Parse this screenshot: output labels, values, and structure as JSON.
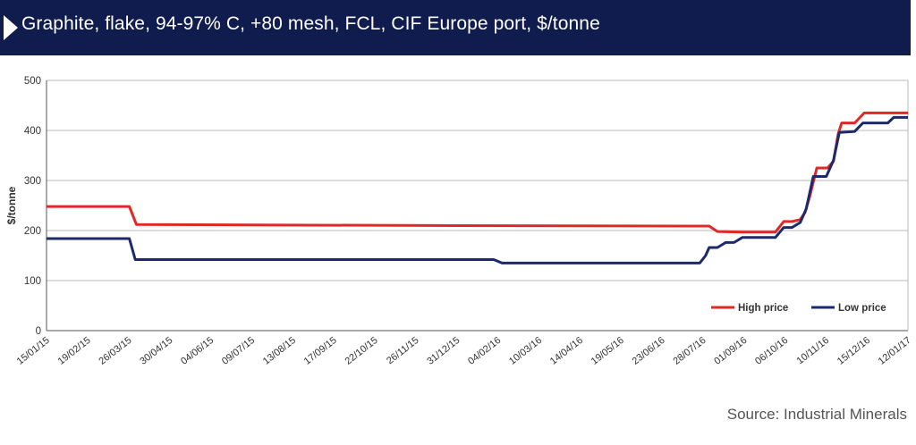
{
  "title": "Graphite, flake, 94-97% C, +80 mesh, FCL, CIF Europe port, $/tonne",
  "source": "Source: Industrial Minerals",
  "colors": {
    "header_bg": "#0f1c4d",
    "high": "#e02827",
    "low": "#1c2a6b",
    "grid": "#b9b9b9"
  },
  "chart_data": {
    "type": "line",
    "title": "Graphite, flake, 94-97% C, +80 mesh, FCL, CIF Europe port, $/tonne",
    "ylabel": "$/tonne",
    "xlabel": "",
    "ylim": [
      0,
      500
    ],
    "yticks": [
      "0",
      "100",
      "200",
      "300",
      "400",
      "500"
    ],
    "xtick_labels": [
      "15/01/15",
      "19/02/15",
      "26/03/15",
      "30/04/15",
      "04/06/15",
      "09/07/15",
      "13/08/15",
      "17/09/15",
      "22/10/15",
      "26/11/15",
      "31/12/15",
      "04/02/16",
      "10/03/16",
      "14/04/16",
      "19/05/16",
      "23/06/16",
      "28/07/16",
      "01/09/16",
      "06/10/16",
      "10/11/16",
      "15/12/16",
      "12/01/17"
    ],
    "grid": true,
    "legend_position": "bottom-right",
    "series": [
      {
        "name": "High price",
        "color": "#e02827",
        "points": [
          [
            "15/01/15",
            248
          ],
          [
            "26/03/15",
            248
          ],
          [
            "01/04/15",
            212
          ],
          [
            "07/12/15",
            210
          ],
          [
            "20/07/16",
            209
          ],
          [
            "28/07/16",
            209
          ],
          [
            "04/08/16",
            198
          ],
          [
            "25/08/16",
            197
          ],
          [
            "15/09/16",
            197
          ],
          [
            "22/09/16",
            197
          ],
          [
            "29/09/16",
            218
          ],
          [
            "06/10/16",
            218
          ],
          [
            "13/10/16",
            222
          ],
          [
            "17/10/16",
            236
          ],
          [
            "21/10/16",
            268
          ],
          [
            "27/10/16",
            325
          ],
          [
            "05/11/16",
            325
          ],
          [
            "10/11/16",
            338
          ],
          [
            "14/11/16",
            393
          ],
          [
            "17/11/16",
            415
          ],
          [
            "28/11/16",
            415
          ],
          [
            "06/12/16",
            435
          ],
          [
            "12/01/17",
            435
          ]
        ]
      },
      {
        "name": "Low price",
        "color": "#1c2a6b",
        "points": [
          [
            "15/01/15",
            184
          ],
          [
            "26/03/15",
            184
          ],
          [
            "31/03/15",
            142
          ],
          [
            "28/01/16",
            142
          ],
          [
            "04/02/16",
            135
          ],
          [
            "20/07/16",
            135
          ],
          [
            "25/07/16",
            150
          ],
          [
            "28/07/16",
            166
          ],
          [
            "04/08/16",
            166
          ],
          [
            "11/08/16",
            176
          ],
          [
            "18/08/16",
            176
          ],
          [
            "25/08/16",
            186
          ],
          [
            "22/09/16",
            186
          ],
          [
            "29/09/16",
            206
          ],
          [
            "06/10/16",
            206
          ],
          [
            "13/10/16",
            216
          ],
          [
            "18/10/16",
            243
          ],
          [
            "24/10/16",
            308
          ],
          [
            "04/11/16",
            308
          ],
          [
            "10/11/16",
            340
          ],
          [
            "15/11/16",
            396
          ],
          [
            "28/11/16",
            398
          ],
          [
            "05/12/16",
            415
          ],
          [
            "26/12/16",
            415
          ],
          [
            "31/12/16",
            426
          ],
          [
            "12/01/17",
            426
          ]
        ]
      }
    ]
  }
}
